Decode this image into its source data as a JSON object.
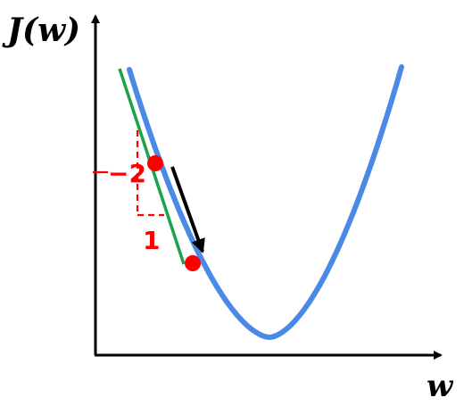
{
  "diagram": {
    "y_axis_label": "J(w)",
    "x_axis_label": "w",
    "slope_rise_label": "−2",
    "slope_run_label": "1",
    "colors": {
      "axes": "#000000",
      "curve": "#4a8ae6",
      "tangent": "#1aa34a",
      "annotation": "#ff0000",
      "points": "#ff0000",
      "step_arrow": "#000000"
    },
    "icons": [
      "y-axis-arrow",
      "x-axis-arrow",
      "step-arrow"
    ]
  }
}
